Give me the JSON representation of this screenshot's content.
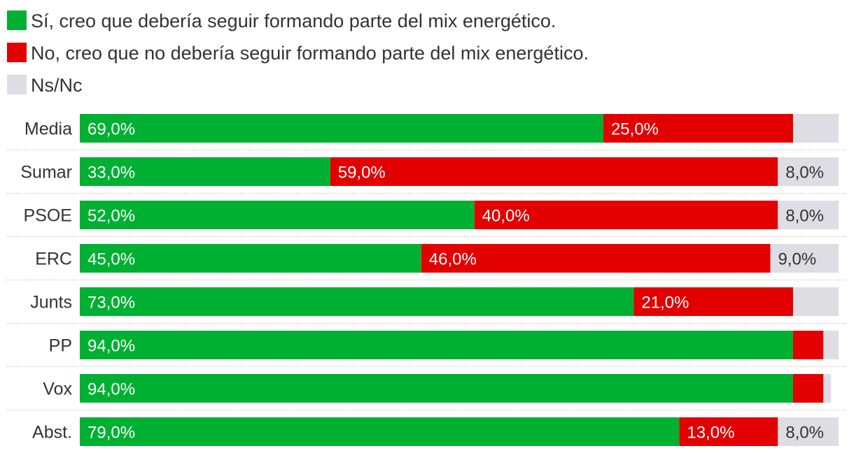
{
  "chart_data": {
    "type": "bar",
    "orientation": "horizontal",
    "stacked": true,
    "title": "",
    "xlabel": "",
    "ylabel": "",
    "xlim": [
      0,
      100
    ],
    "grid": false,
    "legend_position": "top-left",
    "categories": [
      "Media",
      "Sumar",
      "PSOE",
      "ERC",
      "Junts",
      "PP",
      "Vox",
      "Abst."
    ],
    "series": [
      {
        "name": "Sí, creo que debería seguir formando parte del mix energético.",
        "color": "#00b032",
        "values": [
          69,
          33,
          52,
          45,
          73,
          94,
          94,
          79
        ],
        "labels": [
          "69,0%",
          "33,0%",
          "52,0%",
          "45,0%",
          "73,0%",
          "94,0%",
          "94,0%",
          "79,0%"
        ]
      },
      {
        "name": "No, creo que no debería seguir formando parte del mix energético.",
        "color": "#e20000",
        "values": [
          25,
          59,
          40,
          46,
          21,
          4,
          4,
          13
        ],
        "labels": [
          "25,0%",
          "59,0%",
          "40,0%",
          "46,0%",
          "21,0%",
          "",
          "",
          "13,0%"
        ]
      },
      {
        "name": "Ns/Nc",
        "color": "#dddde3",
        "values": [
          6,
          8,
          8,
          9,
          6,
          2,
          1,
          8
        ],
        "labels": [
          "",
          "8,0%",
          "8,0%",
          "9,0%",
          "",
          "",
          "",
          "8,0%"
        ]
      }
    ]
  }
}
